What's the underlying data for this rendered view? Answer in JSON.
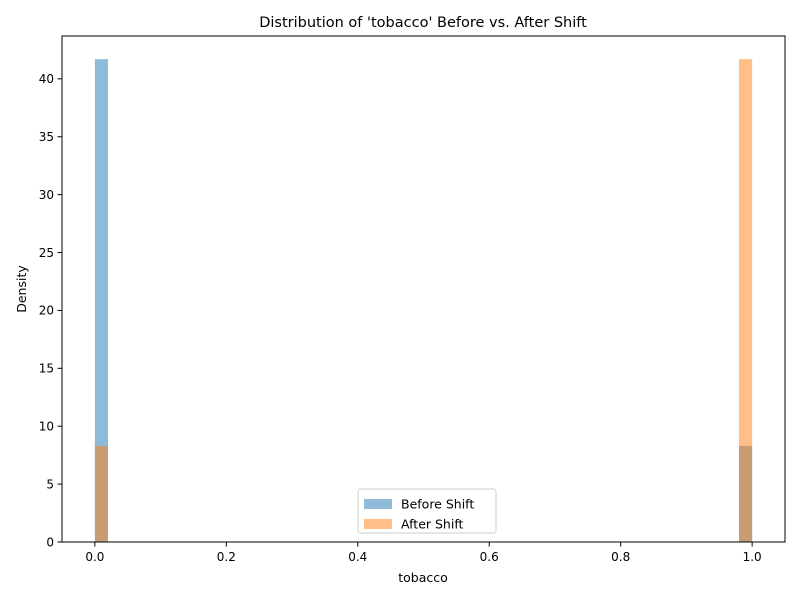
{
  "chart_data": {
    "type": "bar",
    "title": "Distribution of 'tobacco' Before vs. After Shift",
    "xlabel": "tobacco",
    "ylabel": "Density",
    "xlim": [
      -0.05,
      1.05
    ],
    "ylim": [
      0,
      43.7
    ],
    "xticks": [
      0.0,
      0.2,
      0.4,
      0.6,
      0.8,
      1.0
    ],
    "xtick_labels": [
      "0.0",
      "0.2",
      "0.4",
      "0.6",
      "0.8",
      "1.0"
    ],
    "yticks": [
      0,
      5,
      10,
      15,
      20,
      25,
      30,
      35,
      40
    ],
    "ytick_labels": [
      "0",
      "5",
      "10",
      "15",
      "20",
      "25",
      "30",
      "35",
      "40"
    ],
    "grid": false,
    "legend_position": "bottom-center",
    "series": [
      {
        "name": "Before Shift",
        "color": "#1f77b4",
        "opacity": 0.5,
        "bins": [
          {
            "x0": 0.0,
            "x1": 0.02,
            "density": 41.7
          },
          {
            "x0": 0.98,
            "x1": 1.0,
            "density": 8.3
          }
        ]
      },
      {
        "name": "After Shift",
        "color": "#ff7f0e",
        "opacity": 0.5,
        "bins": [
          {
            "x0": 0.0,
            "x1": 0.02,
            "density": 8.3
          },
          {
            "x0": 0.98,
            "x1": 1.0,
            "density": 41.7
          }
        ]
      }
    ]
  }
}
